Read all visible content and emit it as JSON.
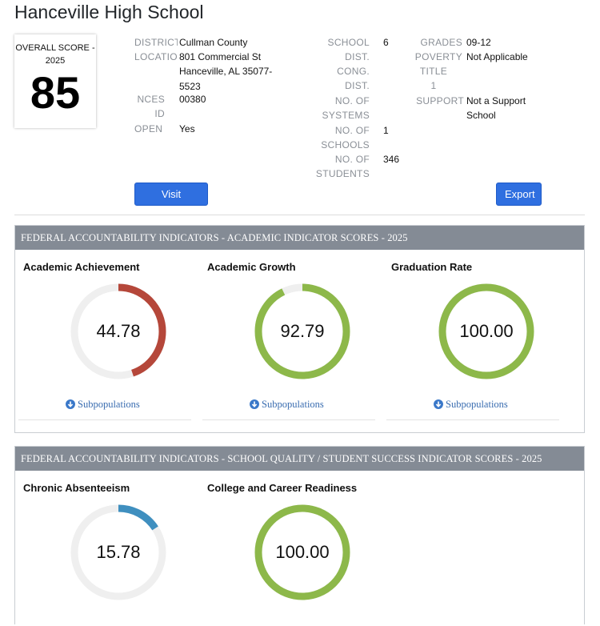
{
  "school": {
    "name": "Hanceville High School"
  },
  "score": {
    "label": "OVERALL SCORE - 2025",
    "value": "85"
  },
  "info": {
    "district_label": "DISTRICT",
    "district_value": "Cullman County",
    "location_label": "LOCATION",
    "location_value": "801 Commercial St Hanceville, AL 35077-5523",
    "nces_label": "NCES ID",
    "nces_value": "00380",
    "open_label": "OPEN",
    "open_value": "Yes",
    "school_dist_label": "SCHOOL DIST.",
    "school_dist_value": "6",
    "cong_dist_label": "CONG. DIST.",
    "cong_dist_value": "",
    "systems_label": "NO. OF SYSTEMS",
    "systems_value": "",
    "schools_label": "NO. OF SCHOOLS",
    "schools_value": "1",
    "students_label": "NO. OF STUDENTS",
    "students_value": "346",
    "grades_label": "GRADES",
    "grades_value": "09-12",
    "poverty_label": "POVERTY",
    "poverty_value": "Not Applicable",
    "title1_label": "TITLE 1",
    "title1_value": "",
    "support_label": "SUPPORT",
    "support_value": "Not a Support School"
  },
  "buttons": {
    "visit_website": "Visit Website",
    "export": "Export"
  },
  "academic_section": {
    "header": "FEDERAL ACCOUNTABILITY INDICATORS - ACADEMIC INDICATOR SCORES - 2025",
    "cards": [
      {
        "title": "Academic Achievement",
        "value": 44.78,
        "display": "44.78",
        "color": "#b5473a",
        "link": "Subpopulations"
      },
      {
        "title": "Academic Growth",
        "value": 92.79,
        "display": "92.79",
        "color": "#8db84a",
        "link": "Subpopulations"
      },
      {
        "title": "Graduation Rate",
        "value": 100.0,
        "display": "100.00",
        "color": "#8db84a",
        "link": "Subpopulations"
      }
    ]
  },
  "quality_section": {
    "header": "FEDERAL ACCOUNTABILITY INDICATORS - SCHOOL QUALITY / STUDENT SUCCESS INDICATOR SCORES - 2025",
    "cards": [
      {
        "title": "Chronic Absenteeism",
        "value": 15.78,
        "display": "15.78",
        "color": "#3f8fbf"
      },
      {
        "title": "College and Career Readiness",
        "value": 100.0,
        "display": "100.00",
        "color": "#8db84a"
      }
    ]
  },
  "colors": {
    "track": "#efefef",
    "header_bg": "#848b95",
    "button": "#2f6fe0"
  }
}
